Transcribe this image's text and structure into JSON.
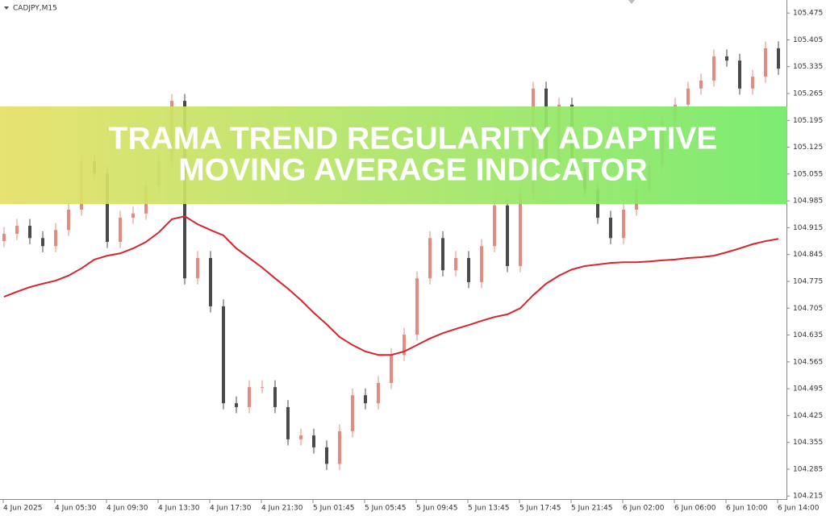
{
  "chart_data": {
    "type": "candlestick",
    "symbol": "CADJPY,M15",
    "banner": [
      "TRAMA TREND REGULARITY ADAPTIVE",
      "MOVING AVERAGE INDICATOR"
    ],
    "x_labels": [
      "4 Jun 2025",
      "4 Jun 05:30",
      "4 Jun 09:30",
      "4 Jun 13:30",
      "4 Jun 17:30",
      "4 Jun 21:30",
      "5 Jun 01:45",
      "5 Jun 05:45",
      "5 Jun 09:45",
      "5 Jun 13:45",
      "5 Jun 17:45",
      "5 Jun 21:45",
      "6 Jun 02:00",
      "6 Jun 06:00",
      "6 Jun 10:00",
      "6 Jun 14:00"
    ],
    "ylim": [
      104.205,
      105.509
    ],
    "yticks": [
      105.475,
      105.405,
      105.335,
      105.265,
      105.195,
      105.125,
      105.055,
      104.985,
      104.915,
      104.845,
      104.775,
      104.705,
      104.635,
      104.565,
      104.495,
      104.425,
      104.355,
      104.285,
      104.215
    ],
    "up_color": "#e58a80",
    "down_color": "#4a4a4a",
    "open": [
      104.88,
      104.899,
      104.92,
      104.888,
      104.867,
      104.909,
      104.962,
      105.088,
      105.057,
      104.878,
      104.941,
      104.952,
      105.025,
      105.088,
      105.246,
      104.783,
      104.836,
      104.71,
      104.457,
      104.447,
      104.499,
      104.499,
      104.447,
      104.363,
      104.373,
      104.342,
      104.299,
      104.384,
      104.478,
      104.457,
      104.51,
      104.583,
      104.636,
      104.783,
      104.888,
      104.804,
      104.836,
      104.773,
      104.867,
      104.973,
      104.815,
      105.004,
      105.278,
      105.088,
      105.236,
      105.067,
      105.015,
      104.941,
      104.888,
      104.962,
      105.015,
      105.078,
      105.193,
      105.236,
      105.278,
      105.299,
      105.362,
      105.351,
      105.278,
      105.309,
      105.383
    ],
    "high": [
      104.917,
      104.938,
      104.938,
      104.906,
      104.927,
      104.98,
      105.106,
      105.106,
      105.075,
      104.959,
      104.97,
      105.043,
      105.106,
      105.264,
      105.264,
      104.854,
      104.854,
      104.728,
      104.475,
      104.517,
      104.517,
      104.517,
      104.465,
      104.391,
      104.391,
      104.36,
      104.402,
      104.496,
      104.496,
      104.528,
      104.601,
      104.654,
      104.801,
      104.906,
      104.906,
      104.854,
      104.854,
      104.885,
      104.991,
      104.991,
      105.022,
      105.296,
      105.296,
      105.254,
      105.254,
      105.085,
      105.033,
      104.959,
      104.98,
      105.033,
      105.096,
      105.211,
      105.254,
      105.296,
      105.317,
      105.38,
      105.38,
      105.369,
      105.327,
      105.401,
      105.401
    ],
    "low": [
      104.864,
      104.883,
      104.872,
      104.851,
      104.851,
      104.893,
      104.946,
      105.041,
      104.862,
      104.862,
      104.925,
      104.936,
      105.009,
      105.072,
      104.767,
      104.767,
      104.694,
      104.441,
      104.431,
      104.431,
      104.483,
      104.431,
      104.347,
      104.347,
      104.326,
      104.283,
      104.283,
      104.368,
      104.441,
      104.441,
      104.494,
      104.567,
      104.62,
      104.767,
      104.788,
      104.788,
      104.757,
      104.757,
      104.851,
      104.799,
      104.799,
      104.988,
      105.072,
      105.072,
      105.051,
      104.999,
      104.925,
      104.872,
      104.872,
      104.946,
      104.999,
      105.062,
      105.177,
      105.22,
      105.262,
      105.283,
      105.335,
      105.262,
      105.262,
      105.293,
      105.314
    ],
    "close": [
      104.899,
      104.92,
      104.888,
      104.867,
      104.909,
      104.962,
      105.088,
      105.057,
      104.878,
      104.941,
      104.952,
      105.025,
      105.088,
      105.246,
      104.783,
      104.836,
      104.71,
      104.457,
      104.447,
      104.499,
      104.499,
      104.447,
      104.363,
      104.373,
      104.342,
      104.299,
      104.384,
      104.478,
      104.457,
      104.51,
      104.583,
      104.636,
      104.783,
      104.888,
      104.804,
      104.836,
      104.773,
      104.867,
      104.973,
      104.815,
      105.004,
      105.278,
      105.088,
      105.236,
      105.067,
      105.015,
      104.941,
      104.888,
      104.962,
      105.015,
      105.078,
      105.193,
      105.236,
      105.278,
      105.299,
      105.362,
      105.351,
      105.278,
      105.309,
      105.383,
      105.33
    ],
    "ma": {
      "color": "#d8242f",
      "values": [
        104.735,
        104.748,
        104.76,
        104.769,
        104.777,
        104.79,
        104.809,
        104.832,
        104.842,
        104.848,
        104.861,
        104.878,
        104.903,
        104.937,
        104.945,
        104.924,
        104.909,
        104.895,
        104.861,
        104.836,
        104.811,
        104.783,
        104.756,
        104.726,
        104.693,
        104.663,
        104.63,
        104.609,
        104.592,
        104.583,
        104.583,
        104.592,
        104.609,
        104.626,
        104.64,
        104.651,
        104.661,
        104.672,
        104.682,
        104.689,
        104.705,
        104.739,
        104.769,
        104.79,
        104.806,
        104.815,
        104.819,
        104.823,
        104.825,
        104.825,
        104.827,
        104.83,
        104.832,
        104.836,
        104.838,
        104.842,
        104.851,
        104.861,
        104.872,
        104.88,
        104.886
      ]
    }
  }
}
